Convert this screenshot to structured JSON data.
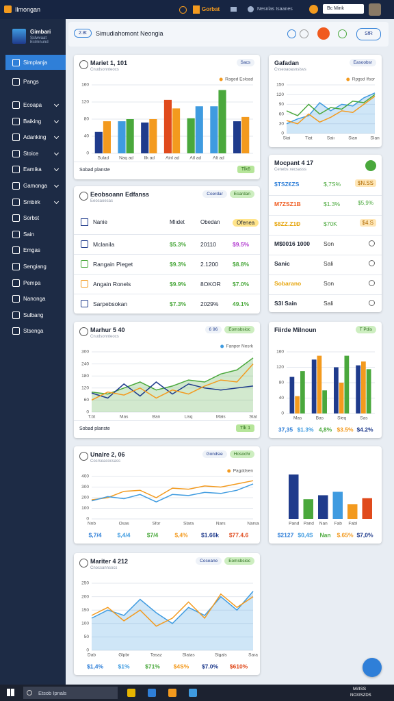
{
  "topbar": {
    "app": "Ilmongan",
    "brand": "Gorbat",
    "user": "Nesnlas Isaanes",
    "search": "Bc Mink"
  },
  "sidebar": {
    "logo_title": "Gimbari",
    "logo_sub": "Sclwvaat Eclmnund",
    "items": [
      "Simplanja",
      "Pangs",
      "Ecoapa",
      "Baiking",
      "Adanking",
      "Stoice",
      "Eamika",
      "Gamonga",
      "Smbirk",
      "Sorbst",
      "Sain",
      "Emgas",
      "Sengiang",
      "Pempa",
      "Nanonga",
      "Sulbang",
      "Stsenga"
    ]
  },
  "header": {
    "badge": "2.8t",
    "title": "Simudiahomont Neongia",
    "button": "SfR"
  },
  "panels": [
    {
      "type": "bar",
      "title": "Mariet 1, 101",
      "subtitle": "Cnudsonnteocs",
      "chips": [
        "Sacs"
      ],
      "legend": "Raged Esload",
      "ylim": [
        0,
        160
      ],
      "yticks": [
        0,
        40,
        80,
        120,
        160
      ],
      "categories": [
        "Sulad",
        "Naq ad",
        "Ilk ad",
        "Ainl ad",
        "Atl ad",
        "Alt ad",
        null
      ],
      "series": [
        {
          "colors": [
            "#1f3b8c",
            "#3f9be0",
            "#1f3b8c",
            "#e04a1c",
            "#4aa83c",
            "#3f9be0",
            "#1f3b8c"
          ],
          "values": [
            50,
            75,
            72,
            125,
            82,
            110,
            75
          ]
        },
        {
          "colors": [
            "#f39a1e",
            "#4aa83c",
            "#f39a1e",
            "#f39a1e",
            "#3f9be0",
            "#4aa83c",
            "#f39a1e"
          ],
          "values": [
            75,
            80,
            80,
            105,
            110,
            148,
            85
          ]
        }
      ],
      "footer": "Sobad planste",
      "footer_badge": "Tlk6"
    },
    {
      "type": "line",
      "title": "Gafadan",
      "subtitle": "Cvseoaoasnsisvs",
      "chips": [
        "Easoobsr"
      ],
      "legend": "Rpgsd Ifsor",
      "ylim": [
        0,
        150
      ],
      "yticks": [
        0,
        30,
        60,
        90,
        120,
        150
      ],
      "categories": [
        "Siai",
        null,
        "Tiat",
        null,
        "Saiı",
        null,
        "Sian",
        null,
        "SIan"
      ],
      "series": [
        {
          "color": "#3f9be0",
          "area": true,
          "values": [
            30,
            45,
            55,
            95,
            70,
            90,
            85,
            110,
            125
          ]
        },
        {
          "color": "#4aa83c",
          "values": [
            70,
            55,
            90,
            60,
            80,
            75,
            100,
            95,
            120
          ]
        },
        {
          "color": "#f39a1e",
          "values": [
            40,
            30,
            60,
            35,
            50,
            70,
            65,
            90,
            115
          ]
        }
      ]
    },
    {
      "type": "list",
      "title": "Mocpant 4 17",
      "subtitle": "Cenebs xecsasss",
      "rows": [
        [
          "$TSZ€ZS",
          "$,7S%",
          "$N.SS"
        ],
        [
          "M7ZSZ1B",
          "$1.3%",
          "$5,9%"
        ],
        [
          "$8ZZ.Z1Ð",
          "$70K",
          "$4.S"
        ],
        [
          "M$0016 1000",
          "Son"
        ],
        [
          "Sanic",
          "Sali"
        ],
        [
          "Sobarano",
          "Son"
        ],
        [
          "S3I Sain",
          "Sali"
        ]
      ]
    },
    {
      "type": "table",
      "title": "Eeobsoann Edfanss",
      "subtitle": "Eeosaoesas",
      "chips": [
        "Coerdar",
        "Ecardan"
      ],
      "header": [
        "Nanie",
        "Mlıdet",
        "Obedan",
        "Ofenea"
      ],
      "rows": [
        [
          "Mclanila",
          "$5.3%",
          "20110",
          "$9.5%"
        ],
        [
          "Rangain Pieget",
          "$9.3%",
          "2.1200",
          "$8.8%"
        ],
        [
          "Angain Ronels",
          "$9.9%",
          "8OKOR",
          "$7.0%"
        ],
        [
          "Sarpebsokan",
          "$7.3%",
          "2029%",
          "49.1%"
        ]
      ]
    },
    {
      "type": "line",
      "title": "Marhur 5 40",
      "subtitle": "Cnudsonnteocs",
      "chips": [
        "6 96",
        "Eomsbsioc"
      ],
      "legend": "Fanper Nesrk",
      "ylim": [
        0,
        300
      ],
      "yticks": [
        0,
        60,
        120,
        180,
        240,
        300
      ],
      "categories": [
        "T.bt",
        null,
        "Mas",
        null,
        "Ban",
        null,
        "Lisq",
        null,
        "Mais",
        null,
        "Stat"
      ],
      "series": [
        {
          "color": "#4aa83c",
          "area": true,
          "values": [
            100,
            90,
            120,
            150,
            110,
            130,
            160,
            150,
            190,
            210,
            270
          ]
        },
        {
          "color": "#1f3b8c",
          "values": [
            95,
            70,
            140,
            80,
            150,
            90,
            140,
            120,
            110,
            120,
            130
          ]
        },
        {
          "color": "#f39a1e",
          "values": [
            60,
            100,
            85,
            120,
            70,
            110,
            90,
            130,
            160,
            150,
            240
          ]
        }
      ],
      "footer": "Sobad planste",
      "footer_badge": "Tlk 1"
    },
    {
      "type": "bar",
      "title": "Fiirde Milnoun",
      "chips": [
        "T Pdis"
      ],
      "ylim": [
        0,
        160
      ],
      "yticks": [
        0,
        40,
        80,
        120,
        160
      ],
      "categories": [
        "Mas",
        "Bas",
        "Sieq",
        "Sas"
      ],
      "series": [
        {
          "color": "#1f3b8c",
          "values": [
            95,
            140,
            120,
            125
          ]
        },
        {
          "color": "#f39a1e",
          "values": [
            45,
            150,
            80,
            135
          ]
        },
        {
          "color": "#4aa83c",
          "values": [
            110,
            60,
            150,
            115
          ]
        }
      ],
      "footer_values": [
        "37,35",
        "$1.3%",
        "4,8%",
        "$3.5%",
        "$4.2%"
      ]
    },
    {
      "type": "line",
      "title": "Unalre 2, 06",
      "subtitle": "Cosrseacocsass",
      "chips": [
        "Gondsie",
        "Hosochr"
      ],
      "legend": "Pagddsen",
      "ylim": [
        0,
        400
      ],
      "yticks": [
        0,
        100,
        200,
        300,
        400
      ],
      "categories": [
        "Nnb",
        null,
        "Osas",
        null,
        "Sfor",
        null,
        "Slara",
        null,
        "Nars",
        null,
        "Narsa"
      ],
      "series": [
        {
          "color": "#f39a1e",
          "values": [
            180,
            200,
            260,
            270,
            200,
            290,
            280,
            310,
            300,
            330,
            360
          ]
        },
        {
          "color": "#3f9be0",
          "values": [
            170,
            210,
            190,
            230,
            160,
            230,
            220,
            250,
            240,
            270,
            330
          ]
        }
      ],
      "footer_values": [
        "$,7/4",
        "$,4/4",
        "$7/4",
        "$,4%",
        "$1.66k",
        "$77.4.6"
      ]
    },
    {
      "type": "bar",
      "ylim": [
        0,
        100
      ],
      "categories": [
        "Pand",
        "Pand",
        "Nan",
        "Fab",
        "Fabl",
        null
      ],
      "series": [
        {
          "colors": [
            "#1f3b8c",
            "#4aa83c",
            "#1f3b8c",
            "#3f9be0",
            "#f39a1e",
            "#e04a1c"
          ],
          "values": [
            90,
            40,
            48,
            55,
            30,
            42
          ]
        }
      ],
      "footer_values": [
        "$2127",
        "$0,4S",
        "Nan",
        "$.65%",
        "$7,0%"
      ]
    },
    {
      "type": "line",
      "title": "Mariter 4 212",
      "subtitle": "Cnocsannsocs",
      "chips": [
        "Coseane",
        "Eomsbsioc"
      ],
      "ylim": [
        0,
        250
      ],
      "yticks": [
        0,
        50,
        100,
        150,
        200,
        250
      ],
      "categories": [
        "Dab",
        null,
        "Glpbr",
        null,
        "Tasaz",
        null,
        "Slatas",
        null,
        "Sigals",
        null,
        "Sara"
      ],
      "series": [
        {
          "color": "#3f9be0",
          "area": true,
          "values": [
            120,
            150,
            130,
            190,
            140,
            100,
            160,
            130,
            200,
            150,
            220
          ]
        },
        {
          "color": "#f39a1e",
          "values": [
            130,
            160,
            110,
            150,
            90,
            120,
            180,
            120,
            210,
            160,
            200
          ]
        }
      ],
      "footer_values": [
        "$1,4%",
        "$1%",
        "$71%",
        "$4S%",
        "$7.0%",
        "$610%"
      ]
    }
  ],
  "taskbar": {
    "search": "Etsob Ipnals",
    "time": "Mi/ISS",
    "date": "NOXISZDS"
  }
}
